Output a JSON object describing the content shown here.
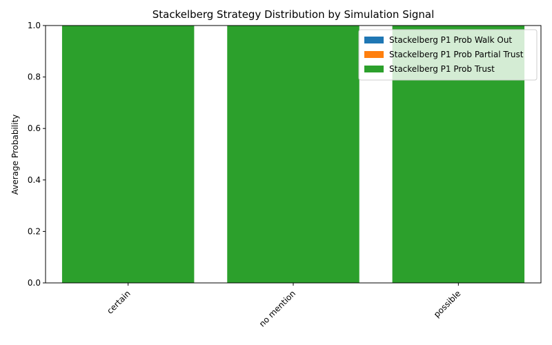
{
  "chart_data": {
    "type": "bar",
    "stacked": true,
    "title": "Stackelberg Strategy Distribution by Simulation Signal",
    "xlabel": "",
    "ylabel": "Average Probability",
    "categories": [
      "certain",
      "no mention",
      "possible"
    ],
    "ylim": [
      0,
      1.0
    ],
    "yticks": [
      0.0,
      0.2,
      0.4,
      0.6,
      0.8,
      1.0
    ],
    "ytick_labels": [
      "0.0",
      "0.2",
      "0.4",
      "0.6",
      "0.8",
      "1.0"
    ],
    "series": [
      {
        "name": "Stackelberg P1 Prob Walk Out",
        "color": "#1f77b4",
        "values": [
          0,
          0,
          0
        ]
      },
      {
        "name": "Stackelberg P1 Prob Partial Trust",
        "color": "#ff7f0e",
        "values": [
          0,
          0,
          0
        ]
      },
      {
        "name": "Stackelberg P1 Prob Trust",
        "color": "#2ca02c",
        "values": [
          1.0,
          1.0,
          1.0
        ]
      }
    ],
    "legend_position": "top-right",
    "grid": false
  }
}
